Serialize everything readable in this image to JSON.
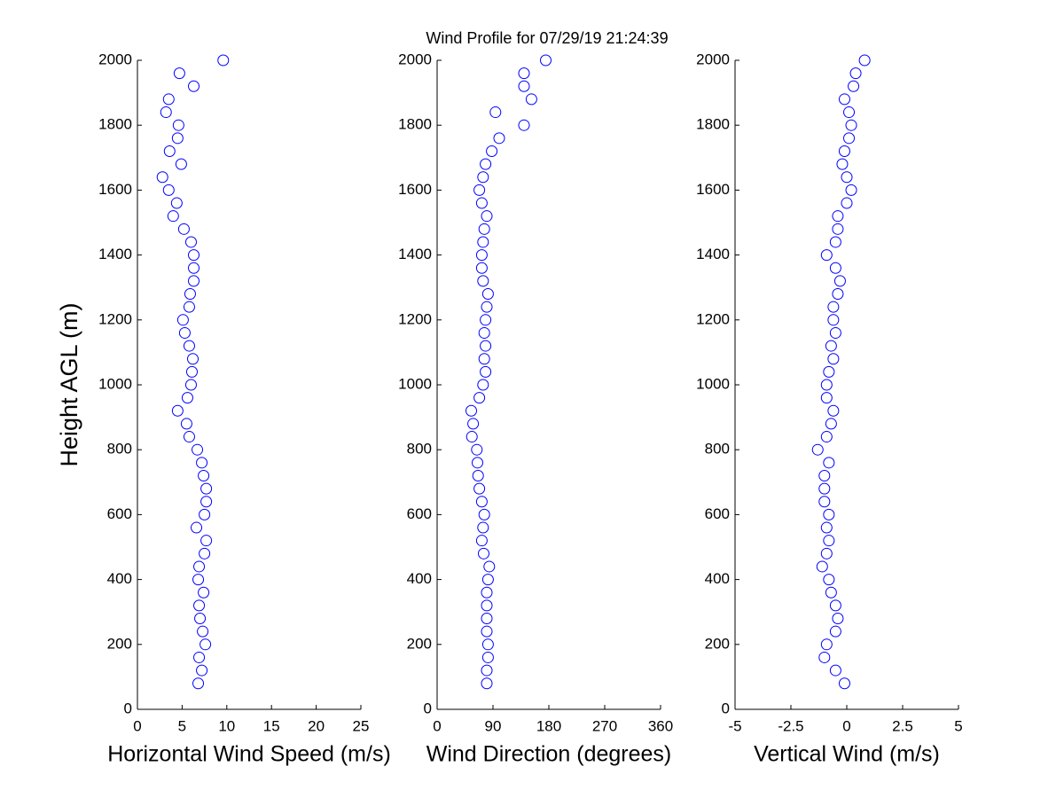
{
  "chart_data": [
    {
      "type": "scatter",
      "title": "Wind Profile for  07/29/19 21:24:39",
      "xlabel": "Horizontal Wind Speed (m/s)",
      "ylabel": "Height AGL (m)",
      "color": "#0000ff",
      "xlim": [
        0,
        25
      ],
      "xticks": [
        0,
        5,
        10,
        15,
        20,
        25
      ],
      "ylim": [
        0,
        2000
      ],
      "yticks": [
        0,
        200,
        400,
        600,
        800,
        1000,
        1200,
        1400,
        1600,
        1800,
        2000
      ],
      "x": [
        6.8,
        7.2,
        6.9,
        7.6,
        7.3,
        7.0,
        6.9,
        7.4,
        6.8,
        6.9,
        7.5,
        7.7,
        6.6,
        7.5,
        7.7,
        7.7,
        7.4,
        7.2,
        6.7,
        5.8,
        5.5,
        4.5,
        5.6,
        6.0,
        6.1,
        6.2,
        5.8,
        5.3,
        5.1,
        5.8,
        5.9,
        6.3,
        6.3,
        6.3,
        6.0,
        5.2,
        4.0,
        4.4,
        3.5,
        2.8,
        4.9,
        3.6,
        4.5,
        4.6,
        3.2,
        3.5,
        6.3,
        4.7,
        9.6
      ],
      "values": [
        80,
        120,
        160,
        200,
        240,
        280,
        320,
        360,
        400,
        440,
        480,
        520,
        560,
        600,
        640,
        680,
        720,
        760,
        800,
        840,
        880,
        920,
        960,
        1000,
        1040,
        1080,
        1120,
        1160,
        1200,
        1240,
        1280,
        1320,
        1360,
        1400,
        1440,
        1480,
        1520,
        1560,
        1600,
        1640,
        1680,
        1720,
        1760,
        1800,
        1840,
        1880,
        1920,
        1960,
        2000
      ]
    },
    {
      "type": "scatter",
      "xlabel": "Wind Direction (degrees)",
      "color": "#0000ff",
      "xlim": [
        0,
        360
      ],
      "xticks": [
        0,
        90,
        180,
        270,
        360
      ],
      "ylim": [
        0,
        2000
      ],
      "yticks": [
        0,
        200,
        400,
        600,
        800,
        1000,
        1200,
        1400,
        1600,
        1800,
        2000
      ],
      "x": [
        80,
        80,
        82,
        82,
        80,
        80,
        80,
        80,
        82,
        84,
        75,
        72,
        74,
        76,
        72,
        68,
        66,
        65,
        64,
        56,
        58,
        55,
        68,
        74,
        78,
        76,
        78,
        76,
        78,
        80,
        82,
        74,
        72,
        72,
        74,
        76,
        80,
        72,
        68,
        74,
        78,
        88,
        100,
        140,
        94,
        152,
        140,
        140,
        175
      ],
      "values": [
        80,
        120,
        160,
        200,
        240,
        280,
        320,
        360,
        400,
        440,
        480,
        520,
        560,
        600,
        640,
        680,
        720,
        760,
        800,
        840,
        880,
        920,
        960,
        1000,
        1040,
        1080,
        1120,
        1160,
        1200,
        1240,
        1280,
        1320,
        1360,
        1400,
        1440,
        1480,
        1520,
        1560,
        1600,
        1640,
        1680,
        1720,
        1760,
        1800,
        1840,
        1880,
        1920,
        1960,
        2000
      ]
    },
    {
      "type": "scatter",
      "xlabel": "Vertical Wind (m/s)",
      "color": "#0000ff",
      "xlim": [
        -5,
        5
      ],
      "xticks": [
        -5,
        -2.5,
        0,
        2.5,
        5
      ],
      "ylim": [
        0,
        2000
      ],
      "yticks": [
        0,
        200,
        400,
        600,
        800,
        1000,
        1200,
        1400,
        1600,
        1800,
        2000
      ],
      "x": [
        -0.1,
        -0.5,
        -1.0,
        -0.9,
        -0.5,
        -0.4,
        -0.5,
        -0.7,
        -0.8,
        -1.1,
        -0.9,
        -0.8,
        -0.9,
        -0.8,
        -1.0,
        -1.0,
        -1.0,
        -0.8,
        -1.3,
        -0.9,
        -0.7,
        -0.6,
        -0.9,
        -0.9,
        -0.8,
        -0.6,
        -0.7,
        -0.5,
        -0.6,
        -0.6,
        -0.4,
        -0.3,
        -0.5,
        -0.9,
        -0.5,
        -0.4,
        -0.4,
        0.0,
        0.2,
        0.0,
        -0.2,
        -0.1,
        0.1,
        0.2,
        0.1,
        -0.1,
        0.3,
        0.4,
        0.8
      ],
      "values": [
        80,
        120,
        160,
        200,
        240,
        280,
        320,
        360,
        400,
        440,
        480,
        520,
        560,
        600,
        640,
        680,
        720,
        760,
        800,
        840,
        880,
        920,
        960,
        1000,
        1040,
        1080,
        1120,
        1160,
        1200,
        1240,
        1280,
        1320,
        1360,
        1400,
        1440,
        1480,
        1520,
        1560,
        1600,
        1640,
        1680,
        1720,
        1760,
        1800,
        1840,
        1880,
        1920,
        1960,
        2000
      ]
    }
  ]
}
